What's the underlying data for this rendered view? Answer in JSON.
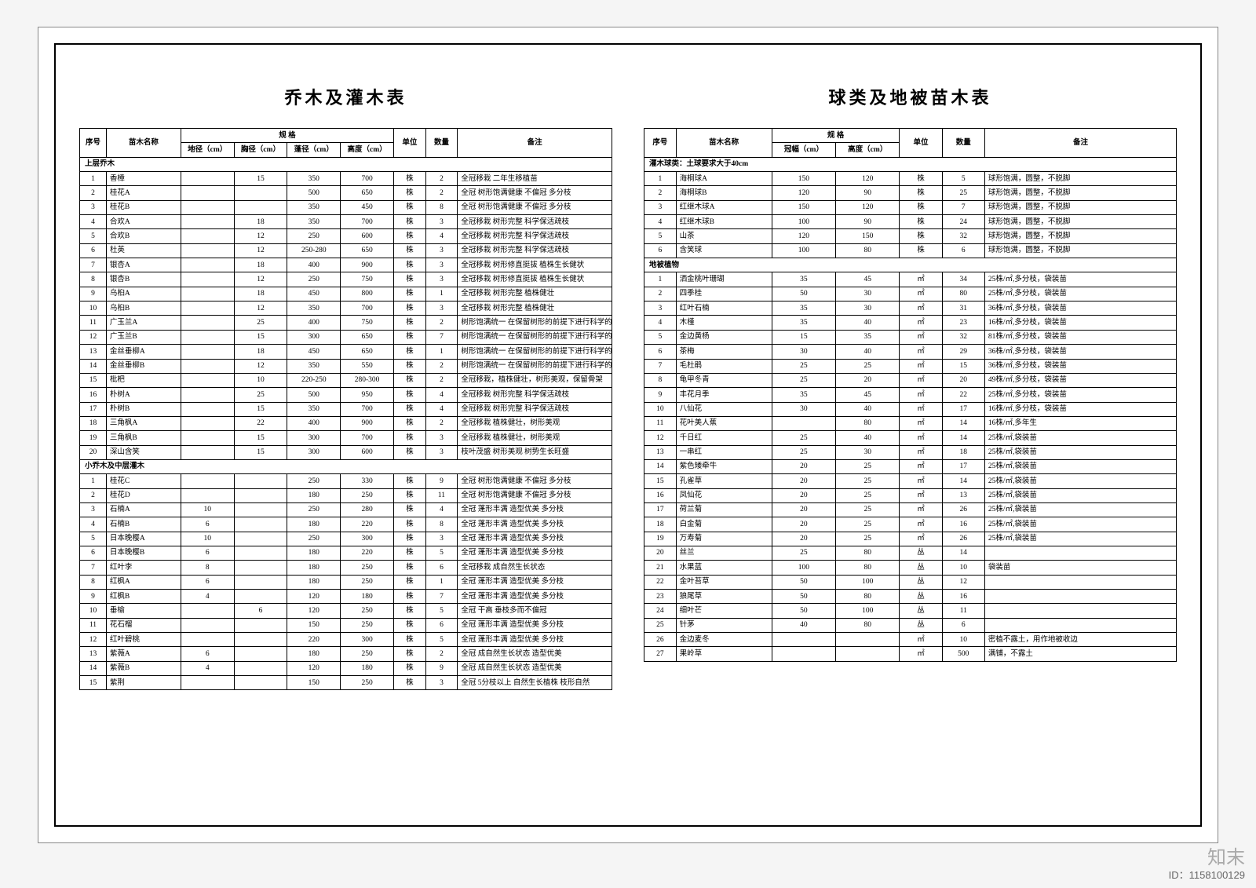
{
  "left": {
    "title": "乔木及灌木表",
    "headers": {
      "seq": "序号",
      "name": "苗木名称",
      "spec": "规 格",
      "spec_sub": [
        "地径（cm）",
        "胸径（cm）",
        "蓬径（cm）",
        "高度（cm）"
      ],
      "unit": "单位",
      "qty": "数量",
      "remark": "备注"
    },
    "section1": "上层乔木",
    "section2": "小乔木及中层灌木",
    "rows1": [
      {
        "n": "1",
        "name": "香樟",
        "d1": "",
        "d2": "15",
        "d3": "350",
        "d4": "700",
        "u": "株",
        "q": "2",
        "r": "全冠移栽 二年生移植苗"
      },
      {
        "n": "2",
        "name": "桂花A",
        "d1": "",
        "d2": "",
        "d3": "500",
        "d4": "650",
        "u": "株",
        "q": "2",
        "r": "全冠 树形饱满健康 不偏冠 多分枝"
      },
      {
        "n": "3",
        "name": "桂花B",
        "d1": "",
        "d2": "",
        "d3": "350",
        "d4": "450",
        "u": "株",
        "q": "8",
        "r": "全冠 树形饱满健康 不偏冠 多分枝"
      },
      {
        "n": "4",
        "name": "合欢A",
        "d1": "",
        "d2": "18",
        "d3": "350",
        "d4": "700",
        "u": "株",
        "q": "3",
        "r": "全冠移栽 树形完整 科学保活疏枝"
      },
      {
        "n": "5",
        "name": "合欢B",
        "d1": "",
        "d2": "12",
        "d3": "250",
        "d4": "600",
        "u": "株",
        "q": "4",
        "r": "全冠移栽 树形完整 科学保活疏枝"
      },
      {
        "n": "6",
        "name": "杜英",
        "d1": "",
        "d2": "12",
        "d3": "250-280",
        "d4": "650",
        "u": "株",
        "q": "3",
        "r": "全冠移栽 树形完整 科学保活疏枝"
      },
      {
        "n": "7",
        "name": "银杏A",
        "d1": "",
        "d2": "18",
        "d3": "400",
        "d4": "900",
        "u": "株",
        "q": "3",
        "r": "全冠移栽 树形修直挺拔 植株生长健状"
      },
      {
        "n": "8",
        "name": "银杏B",
        "d1": "",
        "d2": "12",
        "d3": "250",
        "d4": "750",
        "u": "株",
        "q": "3",
        "r": "全冠移栽 树形修直挺拔 植株生长健状"
      },
      {
        "n": "9",
        "name": "乌桕A",
        "d1": "",
        "d2": "18",
        "d3": "450",
        "d4": "800",
        "u": "株",
        "q": "1",
        "r": "全冠移栽 树形完整 植株健壮"
      },
      {
        "n": "10",
        "name": "乌桕B",
        "d1": "",
        "d2": "12",
        "d3": "350",
        "d4": "700",
        "u": "株",
        "q": "3",
        "r": "全冠移栽 树形完整 植株健壮"
      },
      {
        "n": "11",
        "name": "广玉兰A",
        "d1": "",
        "d2": "25",
        "d3": "400",
        "d4": "750",
        "u": "株",
        "q": "2",
        "r": "树形饱满统一 在保留树形的前提下进行科学的疏枝"
      },
      {
        "n": "12",
        "name": "广玉兰B",
        "d1": "",
        "d2": "15",
        "d3": "300",
        "d4": "650",
        "u": "株",
        "q": "7",
        "r": "树形饱满统一 在保留树形的前提下进行科学的疏枝"
      },
      {
        "n": "13",
        "name": "金丝垂柳A",
        "d1": "",
        "d2": "18",
        "d3": "450",
        "d4": "650",
        "u": "株",
        "q": "1",
        "r": "树形饱满统一 在保留树形的前提下进行科学的疏枝"
      },
      {
        "n": "14",
        "name": "金丝垂柳B",
        "d1": "",
        "d2": "12",
        "d3": "350",
        "d4": "550",
        "u": "株",
        "q": "2",
        "r": "树形饱满统一 在保留树形的前提下进行科学的疏枝"
      },
      {
        "n": "15",
        "name": "枇杷",
        "d1": "",
        "d2": "10",
        "d3": "220-250",
        "d4": "280-300",
        "u": "株",
        "q": "2",
        "r": "全冠移栽，植株健壮，树形美观，保留骨架"
      },
      {
        "n": "16",
        "name": "朴树A",
        "d1": "",
        "d2": "25",
        "d3": "500",
        "d4": "950",
        "u": "株",
        "q": "4",
        "r": "全冠移栽 树形完整 科学保活疏枝"
      },
      {
        "n": "17",
        "name": "朴树B",
        "d1": "",
        "d2": "15",
        "d3": "350",
        "d4": "700",
        "u": "株",
        "q": "4",
        "r": "全冠移栽 树形完整 科学保活疏枝"
      },
      {
        "n": "18",
        "name": "三角枫A",
        "d1": "",
        "d2": "22",
        "d3": "400",
        "d4": "900",
        "u": "株",
        "q": "2",
        "r": "全冠移栽 植株健壮，树形美观"
      },
      {
        "n": "19",
        "name": "三角枫B",
        "d1": "",
        "d2": "15",
        "d3": "300",
        "d4": "700",
        "u": "株",
        "q": "3",
        "r": "全冠移栽 植株健壮，树形美观"
      },
      {
        "n": "20",
        "name": "深山含笑",
        "d1": "",
        "d2": "15",
        "d3": "300",
        "d4": "600",
        "u": "株",
        "q": "3",
        "r": "枝叶茂盛 树形美观 树势生长旺盛"
      }
    ],
    "rows2": [
      {
        "n": "1",
        "name": "桂花C",
        "d1": "",
        "d2": "",
        "d3": "250",
        "d4": "330",
        "u": "株",
        "q": "9",
        "r": "全冠 树形饱满健康 不偏冠 多分枝"
      },
      {
        "n": "2",
        "name": "桂花D",
        "d1": "",
        "d2": "",
        "d3": "180",
        "d4": "250",
        "u": "株",
        "q": "11",
        "r": "全冠 树形饱满健康 不偏冠 多分枝"
      },
      {
        "n": "3",
        "name": "石楠A",
        "d1": "10",
        "d2": "",
        "d3": "250",
        "d4": "280",
        "u": "株",
        "q": "4",
        "r": "全冠 蓬形丰满 造型优美 多分枝"
      },
      {
        "n": "4",
        "name": "石楠B",
        "d1": "6",
        "d2": "",
        "d3": "180",
        "d4": "220",
        "u": "株",
        "q": "8",
        "r": "全冠 蓬形丰满 造型优美 多分枝"
      },
      {
        "n": "5",
        "name": "日本晚樱A",
        "d1": "10",
        "d2": "",
        "d3": "250",
        "d4": "300",
        "u": "株",
        "q": "3",
        "r": "全冠 蓬形丰满 造型优美 多分枝"
      },
      {
        "n": "6",
        "name": "日本晚樱B",
        "d1": "6",
        "d2": "",
        "d3": "180",
        "d4": "220",
        "u": "株",
        "q": "5",
        "r": "全冠 蓬形丰满 造型优美 多分枝"
      },
      {
        "n": "7",
        "name": "红叶李",
        "d1": "8",
        "d2": "",
        "d3": "180",
        "d4": "250",
        "u": "株",
        "q": "6",
        "r": "全冠移栽 成自然生长状态"
      },
      {
        "n": "8",
        "name": "红枫A",
        "d1": "6",
        "d2": "",
        "d3": "180",
        "d4": "250",
        "u": "株",
        "q": "1",
        "r": "全冠 蓬形丰满 造型优美 多分枝"
      },
      {
        "n": "9",
        "name": "红枫B",
        "d1": "4",
        "d2": "",
        "d3": "120",
        "d4": "180",
        "u": "株",
        "q": "7",
        "r": "全冠 蓬形丰满 造型优美 多分枝"
      },
      {
        "n": "10",
        "name": "垂榆",
        "d1": "",
        "d2": "6",
        "d3": "120",
        "d4": "250",
        "u": "株",
        "q": "5",
        "r": "全冠 干高 垂枝多而不偏冠"
      },
      {
        "n": "11",
        "name": "花石榴",
        "d1": "",
        "d2": "",
        "d3": "150",
        "d4": "250",
        "u": "株",
        "q": "6",
        "r": "全冠 蓬形丰满 造型优美 多分枝"
      },
      {
        "n": "12",
        "name": "红叶碧桃",
        "d1": "",
        "d2": "",
        "d3": "220",
        "d4": "300",
        "u": "株",
        "q": "5",
        "r": "全冠 蓬形丰满 造型优美 多分枝"
      },
      {
        "n": "13",
        "name": "紫薇A",
        "d1": "6",
        "d2": "",
        "d3": "180",
        "d4": "250",
        "u": "株",
        "q": "2",
        "r": "全冠 成自然生长状态 造型优美"
      },
      {
        "n": "14",
        "name": "紫薇B",
        "d1": "4",
        "d2": "",
        "d3": "120",
        "d4": "180",
        "u": "株",
        "q": "9",
        "r": "全冠 成自然生长状态 造型优美"
      },
      {
        "n": "15",
        "name": "紫荆",
        "d1": "",
        "d2": "",
        "d3": "150",
        "d4": "250",
        "u": "株",
        "q": "3",
        "r": "全冠 5分枝以上 自然生长植株 枝形自然"
      }
    ]
  },
  "right": {
    "title": "球类及地被苗木表",
    "headers": {
      "seq": "序号",
      "name": "苗木名称",
      "spec": "规 格",
      "spec_sub": [
        "冠幅（cm）",
        "高度（cm）"
      ],
      "unit": "单位",
      "qty": "数量",
      "remark": "备注"
    },
    "section1": "灌木球类：土球要求大于40cm",
    "section2": "地被植物",
    "rows1": [
      {
        "n": "1",
        "name": "海桐球A",
        "d1": "150",
        "d2": "120",
        "u": "株",
        "q": "5",
        "r": "球形饱满，圆整，不脱脚"
      },
      {
        "n": "2",
        "name": "海桐球B",
        "d1": "120",
        "d2": "90",
        "u": "株",
        "q": "25",
        "r": "球形饱满，圆整，不脱脚"
      },
      {
        "n": "3",
        "name": "红继木球A",
        "d1": "150",
        "d2": "120",
        "u": "株",
        "q": "7",
        "r": "球形饱满，圆整，不脱脚"
      },
      {
        "n": "4",
        "name": "红继木球B",
        "d1": "100",
        "d2": "90",
        "u": "株",
        "q": "24",
        "r": "球形饱满，圆整，不脱脚"
      },
      {
        "n": "5",
        "name": "山茶",
        "d1": "120",
        "d2": "150",
        "u": "株",
        "q": "32",
        "r": "球形饱满，圆整，不脱脚"
      },
      {
        "n": "6",
        "name": "含笑球",
        "d1": "100",
        "d2": "80",
        "u": "株",
        "q": "6",
        "r": "球形饱满，圆整，不脱脚"
      }
    ],
    "rows2": [
      {
        "n": "1",
        "name": "洒金桃叶珊瑚",
        "d1": "35",
        "d2": "45",
        "u": "㎡",
        "q": "34",
        "r": "25株/㎡,多分枝，袋装苗"
      },
      {
        "n": "2",
        "name": "四季桂",
        "d1": "50",
        "d2": "30",
        "u": "㎡",
        "q": "80",
        "r": "25株/㎡,多分枝，袋装苗"
      },
      {
        "n": "3",
        "name": "红叶石楠",
        "d1": "35",
        "d2": "30",
        "u": "㎡",
        "q": "31",
        "r": "36株/㎡,多分枝，袋装苗"
      },
      {
        "n": "4",
        "name": "木槿",
        "d1": "35",
        "d2": "40",
        "u": "㎡",
        "q": "23",
        "r": "16株/㎡,多分枝，袋装苗"
      },
      {
        "n": "5",
        "name": "金边黄杨",
        "d1": "15",
        "d2": "35",
        "u": "㎡",
        "q": "32",
        "r": "81株/㎡,多分枝，袋装苗"
      },
      {
        "n": "6",
        "name": "茶梅",
        "d1": "30",
        "d2": "40",
        "u": "㎡",
        "q": "29",
        "r": "36株/㎡,多分枝，袋装苗"
      },
      {
        "n": "7",
        "name": "毛杜鹃",
        "d1": "25",
        "d2": "25",
        "u": "㎡",
        "q": "15",
        "r": "36株/㎡,多分枝，袋装苗"
      },
      {
        "n": "8",
        "name": "龟甲冬青",
        "d1": "25",
        "d2": "20",
        "u": "㎡",
        "q": "20",
        "r": "49株/㎡,多分枝，袋装苗"
      },
      {
        "n": "9",
        "name": "丰花月季",
        "d1": "35",
        "d2": "45",
        "u": "㎡",
        "q": "22",
        "r": "25株/㎡,多分枝，袋装苗"
      },
      {
        "n": "10",
        "name": "八仙花",
        "d1": "30",
        "d2": "40",
        "u": "㎡",
        "q": "17",
        "r": "16株/㎡,多分枝，袋装苗"
      },
      {
        "n": "11",
        "name": "花叶美人蕉",
        "d1": "",
        "d2": "80",
        "u": "㎡",
        "q": "14",
        "r": "16株/㎡,多年生"
      },
      {
        "n": "12",
        "name": "千日红",
        "d1": "25",
        "d2": "40",
        "u": "㎡",
        "q": "14",
        "r": "25株/㎡,袋装苗"
      },
      {
        "n": "13",
        "name": "一串红",
        "d1": "25",
        "d2": "30",
        "u": "㎡",
        "q": "18",
        "r": "25株/㎡,袋装苗"
      },
      {
        "n": "14",
        "name": "紫色矮牵牛",
        "d1": "20",
        "d2": "25",
        "u": "㎡",
        "q": "17",
        "r": "25株/㎡,袋装苗"
      },
      {
        "n": "15",
        "name": "孔雀草",
        "d1": "20",
        "d2": "25",
        "u": "㎡",
        "q": "14",
        "r": "25株/㎡,袋装苗"
      },
      {
        "n": "16",
        "name": "凤仙花",
        "d1": "20",
        "d2": "25",
        "u": "㎡",
        "q": "13",
        "r": "25株/㎡,袋装苗"
      },
      {
        "n": "17",
        "name": "荷兰菊",
        "d1": "20",
        "d2": "25",
        "u": "㎡",
        "q": "26",
        "r": "25株/㎡,袋装苗"
      },
      {
        "n": "18",
        "name": "白金菊",
        "d1": "20",
        "d2": "25",
        "u": "㎡",
        "q": "16",
        "r": "25株/㎡,袋装苗"
      },
      {
        "n": "19",
        "name": "万寿菊",
        "d1": "20",
        "d2": "25",
        "u": "㎡",
        "q": "26",
        "r": "25株/㎡,袋装苗"
      },
      {
        "n": "20",
        "name": "丝兰",
        "d1": "25",
        "d2": "80",
        "u": "丛",
        "q": "14",
        "r": ""
      },
      {
        "n": "21",
        "name": "水果蓝",
        "d1": "100",
        "d2": "80",
        "u": "丛",
        "q": "10",
        "r": "袋装苗"
      },
      {
        "n": "22",
        "name": "金叶苔草",
        "d1": "50",
        "d2": "100",
        "u": "丛",
        "q": "12",
        "r": ""
      },
      {
        "n": "23",
        "name": "狼尾草",
        "d1": "50",
        "d2": "80",
        "u": "丛",
        "q": "16",
        "r": ""
      },
      {
        "n": "24",
        "name": "细叶芒",
        "d1": "50",
        "d2": "100",
        "u": "丛",
        "q": "11",
        "r": ""
      },
      {
        "n": "25",
        "name": "针茅",
        "d1": "40",
        "d2": "80",
        "u": "丛",
        "q": "6",
        "r": ""
      },
      {
        "n": "26",
        "name": "金边麦冬",
        "d1": "",
        "d2": "",
        "u": "㎡",
        "q": "10",
        "r": "密植不露土，用作地被收边"
      },
      {
        "n": "27",
        "name": "果岭草",
        "d1": "",
        "d2": "",
        "u": "㎡",
        "q": "500",
        "r": "满铺，不露土"
      }
    ]
  },
  "footer": {
    "brand": "知末",
    "id": "ID：1158100129"
  }
}
